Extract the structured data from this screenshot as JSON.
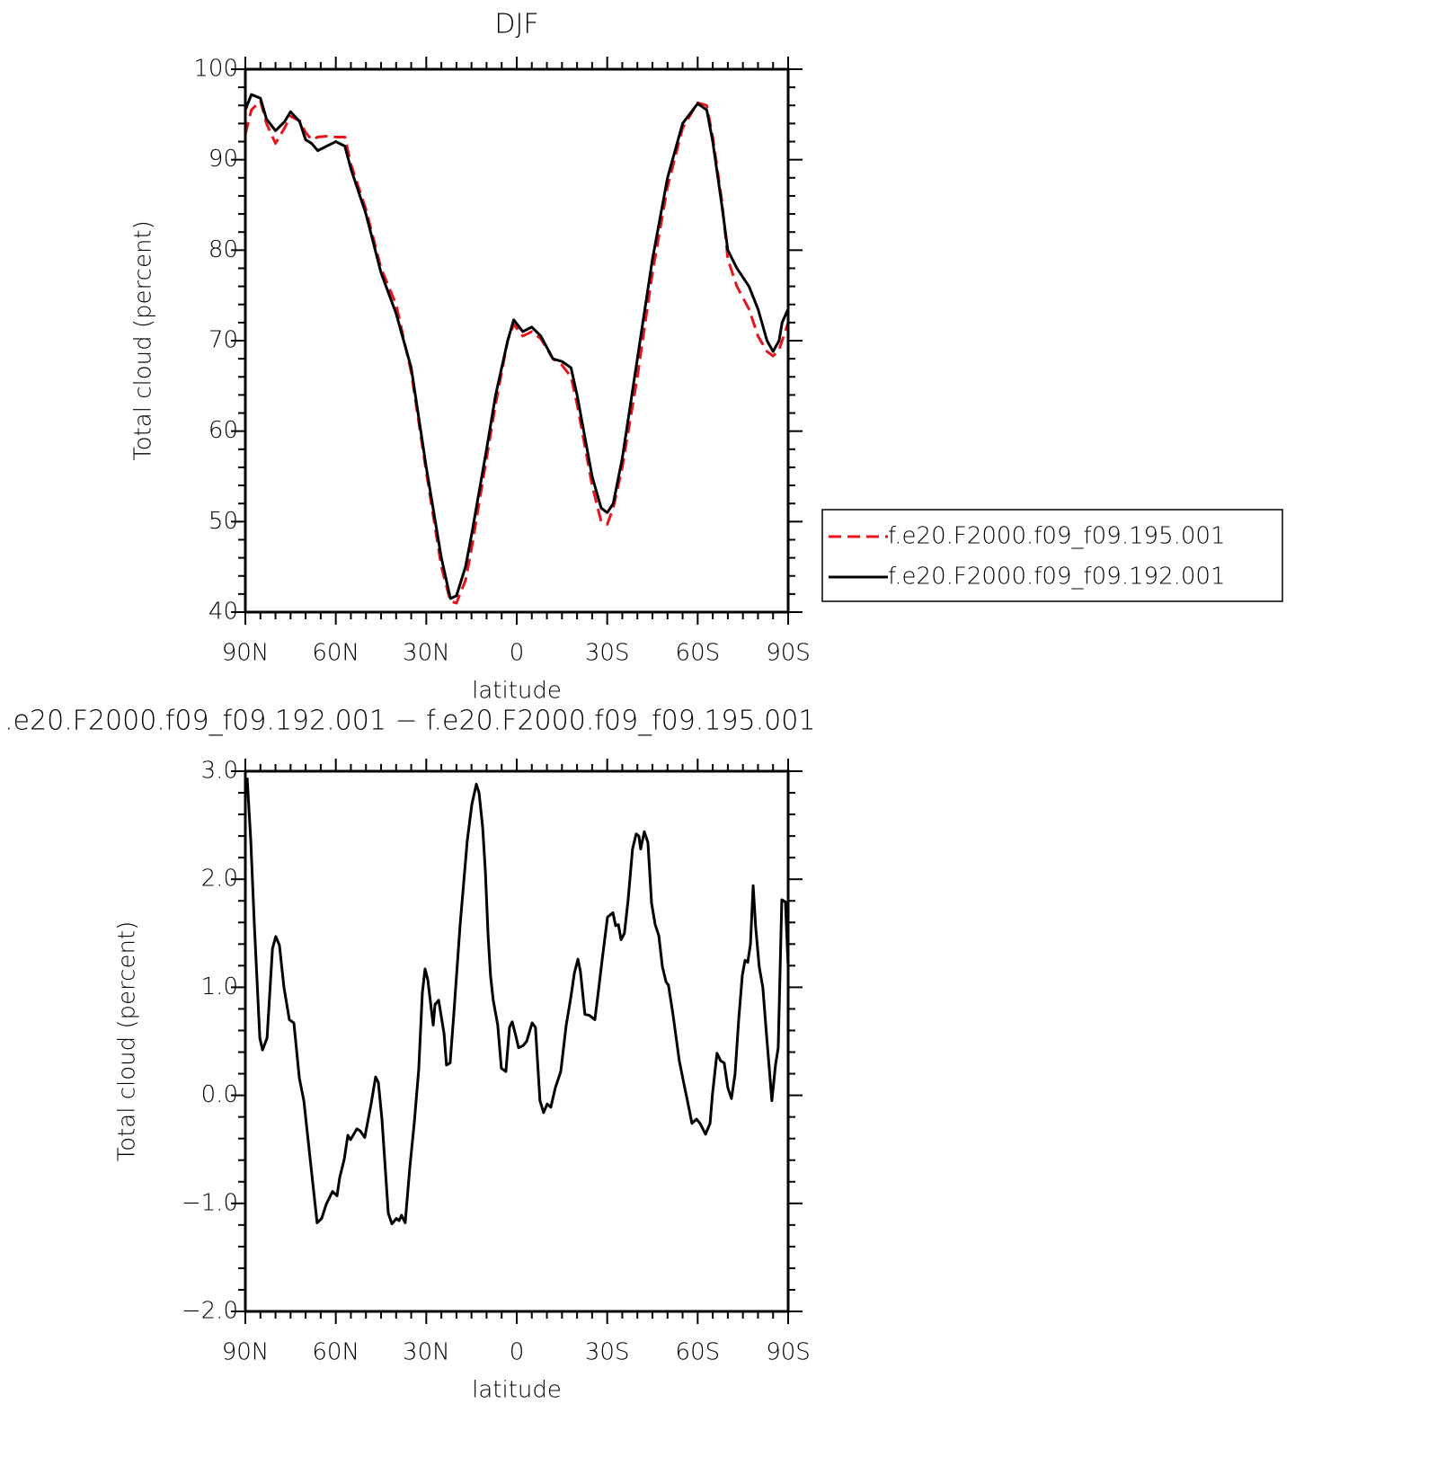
{
  "chart_data": [
    {
      "type": "line",
      "title": "DJF",
      "xlabel": "latitude",
      "ylabel": "Total cloud (percent)",
      "x": [
        90,
        88,
        85,
        83,
        80,
        77,
        75,
        72,
        70,
        68,
        66,
        63,
        60,
        57,
        55,
        50,
        45,
        40,
        35,
        30,
        25,
        22,
        20,
        17,
        15,
        10,
        7,
        3,
        1,
        -2,
        -5,
        -8,
        -12,
        -15,
        -18,
        -20,
        -25,
        -28,
        -30,
        -32,
        -35,
        -40,
        -45,
        -50,
        -55,
        -60,
        -63,
        -65,
        -68,
        -70,
        -73,
        -77,
        -80,
        -83,
        -85,
        -87,
        -88,
        -90
      ],
      "xlim": [
        90,
        -90
      ],
      "xticks": [
        {
          "value": 90,
          "label": "90N"
        },
        {
          "value": 60,
          "label": "60N"
        },
        {
          "value": 30,
          "label": "30N"
        },
        0,
        {
          "value": -30,
          "label": "30S"
        },
        {
          "value": -60,
          "label": "60S"
        },
        {
          "value": -90,
          "label": "90S"
        }
      ],
      "ylim": [
        40,
        100
      ],
      "yticks": [
        40,
        50,
        60,
        70,
        80,
        90,
        100
      ],
      "legend": "right",
      "series": [
        {
          "name": "f.e20.F2000.f09_f09.195.001",
          "color": "#e8141c",
          "dash": true,
          "values": [
            92.8,
            95.5,
            96.5,
            94,
            91.8,
            93.5,
            94.8,
            94.3,
            93,
            92.2,
            92.5,
            92.6,
            92.5,
            92.5,
            89.5,
            84.5,
            78,
            74,
            66.5,
            55.5,
            45,
            41.2,
            41,
            43.5,
            47,
            57,
            63,
            70,
            71.8,
            70.5,
            71,
            70.2,
            68,
            67.3,
            66,
            63,
            54,
            50,
            49.7,
            51.5,
            56,
            66,
            77.5,
            87,
            93.5,
            96.3,
            96,
            92.5,
            85.5,
            79,
            76,
            73.5,
            70.5,
            68.8,
            68.3,
            69,
            70,
            72
          ]
        },
        {
          "name": "f.e20.F2000.f09_f09.192.001",
          "color": "#000000",
          "dash": false,
          "values": [
            95.5,
            97.2,
            96.8,
            94.5,
            93.2,
            94.2,
            95.3,
            94.2,
            92.2,
            91.8,
            91.0,
            91.5,
            92.0,
            91.5,
            89,
            84,
            77.5,
            73,
            67,
            56,
            46,
            41.5,
            41.8,
            45,
            48.5,
            58,
            64,
            70,
            72.3,
            71,
            71.5,
            70.5,
            68,
            67.7,
            67,
            64,
            55,
            51.5,
            51,
            52,
            57,
            68,
            79,
            88,
            94,
            96.2,
            95.5,
            92,
            85,
            80,
            78,
            76,
            73.5,
            70,
            68.8,
            70,
            72,
            73.5
          ]
        }
      ]
    },
    {
      "type": "line",
      "title": ".e20.F2000.f09_f09.192.001 − f.e20.F2000.f09_f09.195.001",
      "xlabel": "latitude",
      "ylabel": "Total cloud (percent)",
      "x": [
        89.4,
        88.2,
        87,
        85.2,
        84.3,
        82.8,
        81,
        79.9,
        78.7,
        77.2,
        75.4,
        73.9,
        72.1,
        70.6,
        68.5,
        66.2,
        64.7,
        63.2,
        61.1,
        59.6,
        58.7,
        57.2,
        56,
        55.1,
        53,
        51.9,
        50.4,
        48.3,
        46.8,
        45.9,
        44.7,
        42.6,
        41.4,
        39.9,
        39,
        38.2,
        37,
        35.5,
        34,
        32.5,
        31.3,
        30.4,
        29.5,
        27.7,
        27.1,
        25.9,
        24.1,
        23.3,
        22.1,
        20.9,
        18.8,
        16.4,
        14.9,
        13.4,
        12.5,
        11.3,
        10.4,
        9.5,
        8.7,
        7.8,
        6.3,
        5.1,
        3.6,
        2.4,
        1.5,
        0.3,
        -0.6,
        -2.1,
        -3.3,
        -5.1,
        -6.2,
        -7.7,
        -8.9,
        -10.1,
        -11.3,
        -12.8,
        -14.6,
        -16.4,
        -17.9,
        -19.1,
        -20.3,
        -21.1,
        -22.6,
        -24.1,
        -25.9,
        -26.8,
        -28.3,
        -30.1,
        -31.9,
        -32.8,
        -33.7,
        -34.6,
        -35.7,
        -36.9,
        -38.4,
        -39.6,
        -40.5,
        -41.1,
        -42.3,
        -43.5,
        -44.7,
        -45.9,
        -47.1,
        -48.3,
        -49.5,
        -50.3,
        -51.8,
        -53.9,
        -55.7,
        -56.6,
        -58.1,
        -59.6,
        -60.8,
        -62.6,
        -64.1,
        -64.9,
        -66.4,
        -67.6,
        -68.8,
        -70,
        -71.2,
        -72.4,
        -73.6,
        -74.8,
        -75.7,
        -76.6,
        -77.5,
        -78.4,
        -79.2,
        -80.4,
        -81.6,
        -82.8,
        -84,
        -84.6,
        -85.8,
        -86.7,
        -87.9,
        -89.1,
        -90
      ],
      "values": [
        2.94,
        2.36,
        1.57,
        0.53,
        0.42,
        0.53,
        1.36,
        1.47,
        1.39,
        1.0,
        0.7,
        0.67,
        0.16,
        -0.05,
        -0.59,
        -1.18,
        -1.14,
        -1.01,
        -0.89,
        -0.93,
        -0.76,
        -0.59,
        -0.37,
        -0.41,
        -0.31,
        -0.33,
        -0.39,
        -0.08,
        0.17,
        0.12,
        -0.22,
        -1.09,
        -1.19,
        -1.14,
        -1.16,
        -1.11,
        -1.18,
        -0.68,
        -0.26,
        0.24,
        0.95,
        1.17,
        1.07,
        0.65,
        0.84,
        0.88,
        0.57,
        0.28,
        0.3,
        0.74,
        1.57,
        2.36,
        2.69,
        2.88,
        2.8,
        2.48,
        2.07,
        1.48,
        1.11,
        0.88,
        0.65,
        0.25,
        0.22,
        0.63,
        0.68,
        0.55,
        0.44,
        0.46,
        0.5,
        0.67,
        0.63,
        -0.05,
        -0.16,
        -0.08,
        -0.11,
        0.07,
        0.22,
        0.65,
        0.9,
        1.13,
        1.26,
        1.15,
        0.75,
        0.74,
        0.7,
        0.9,
        1.25,
        1.65,
        1.69,
        1.57,
        1.58,
        1.44,
        1.5,
        1.8,
        2.28,
        2.42,
        2.4,
        2.28,
        2.44,
        2.34,
        1.78,
        1.58,
        1.48,
        1.19,
        1.05,
        1.02,
        0.75,
        0.32,
        0.07,
        -0.05,
        -0.26,
        -0.22,
        -0.26,
        -0.36,
        -0.26,
        0.01,
        0.39,
        0.32,
        0.3,
        0.07,
        -0.03,
        0.2,
        0.7,
        1.11,
        1.25,
        1.23,
        1.4,
        1.94,
        1.57,
        1.19,
        1.0,
        0.57,
        0.16,
        -0.05,
        0.28,
        0.44,
        1.81,
        1.79,
        1.19
      ],
      "color": "#000000",
      "xlim": [
        90,
        -90
      ],
      "xticks": [
        {
          "value": 90,
          "label": "90N"
        },
        {
          "value": 60,
          "label": "60N"
        },
        {
          "value": 30,
          "label": "30N"
        },
        0,
        {
          "value": -30,
          "label": "30S"
        },
        {
          "value": -60,
          "label": "60S"
        },
        {
          "value": -90,
          "label": "90S"
        }
      ],
      "ylim": [
        -2,
        3
      ],
      "yticks": [
        {
          "value": -2,
          "label": "−2.0"
        },
        {
          "value": -1,
          "label": "−1.0"
        },
        {
          "value": 0,
          "label": "0.0"
        },
        {
          "value": 1,
          "label": "1.0"
        },
        {
          "value": 2,
          "label": "2.0"
        },
        {
          "value": 3,
          "label": "3.0"
        }
      ]
    }
  ]
}
